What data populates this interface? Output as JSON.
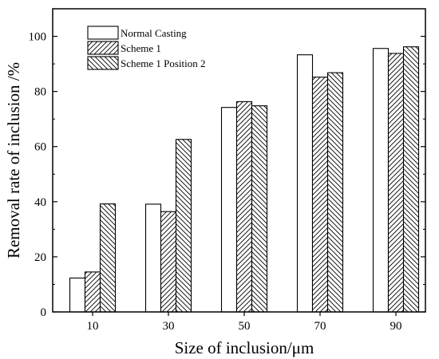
{
  "chart_data": {
    "type": "bar",
    "categories": [
      "10",
      "30",
      "50",
      "70",
      "90"
    ],
    "series": [
      {
        "name": "Normal Casting",
        "values": [
          12.3,
          39.1,
          74.2,
          93.3,
          95.6
        ],
        "pattern": "none"
      },
      {
        "name": "Scheme 1",
        "values": [
          14.5,
          36.4,
          76.3,
          85.2,
          93.8
        ],
        "pattern": "forward-diagonal"
      },
      {
        "name": "Scheme 1 Position 2",
        "values": [
          39.2,
          62.6,
          74.8,
          86.8,
          96.2
        ],
        "pattern": "backward-diagonal"
      }
    ],
    "title": "",
    "xlabel": "Size of inclusion/μm",
    "ylabel": "Removal rate of inclusion /%",
    "ylim": [
      0,
      110
    ],
    "yticks": [
      "0",
      "20",
      "40",
      "60",
      "80",
      "100"
    ],
    "grid": false,
    "legend_position": "top-left",
    "colors": {
      "bar_fill": "#ffffff",
      "bar_stroke": "#000000",
      "hatch": "#000000"
    }
  }
}
